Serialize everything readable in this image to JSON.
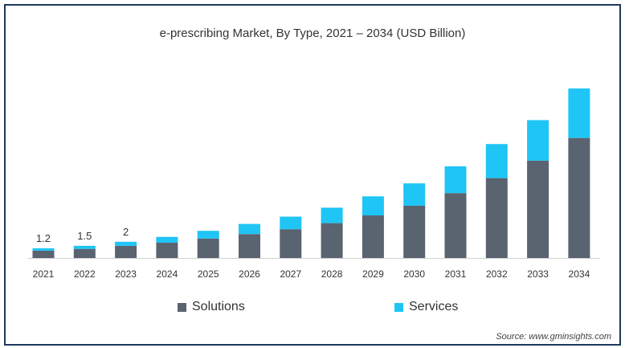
{
  "chart_data": {
    "type": "bar",
    "stacked": true,
    "title": "e-prescribing Market, By Type, 2021 – 2034 (USD Billion)",
    "xlabel": "",
    "ylabel": "",
    "categories": [
      "2021",
      "2022",
      "2023",
      "2024",
      "2025",
      "2026",
      "2027",
      "2028",
      "2029",
      "2030",
      "2031",
      "2032",
      "2033",
      "2034"
    ],
    "series": [
      {
        "name": "Solutions",
        "color": "#5a6370",
        "values": [
          0.9,
          1.12,
          1.5,
          1.88,
          2.4,
          2.95,
          3.55,
          4.3,
          5.25,
          6.45,
          8.0,
          9.85,
          12.0,
          14.8
        ]
      },
      {
        "name": "Services",
        "color": "#1ec5f5",
        "values": [
          0.3,
          0.38,
          0.5,
          0.72,
          0.95,
          1.25,
          1.55,
          1.9,
          2.35,
          2.75,
          3.3,
          4.2,
          5.0,
          6.1
        ]
      }
    ],
    "data_labels": {
      "2021": "1.2",
      "2022": "1.5",
      "2023": "2"
    },
    "ylim": [
      0,
      22
    ],
    "grid": false,
    "legend_position": "bottom"
  },
  "source_text": "Source: www.gminsights.com"
}
